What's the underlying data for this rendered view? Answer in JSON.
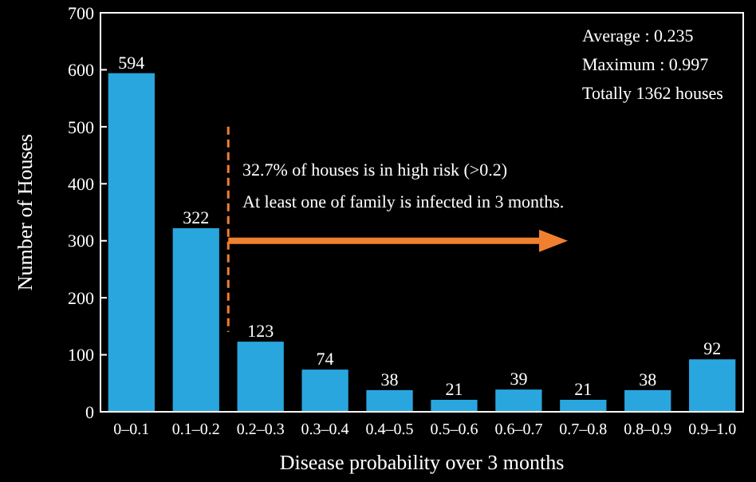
{
  "chart_data": {
    "type": "bar",
    "xlabel": "Disease probability over 3 months",
    "ylabel": "Number of Houses",
    "categories": [
      "0–0.1",
      "0.1–0.2",
      "0.2–0.3",
      "0.3–0.4",
      "0.4–0.5",
      "0.5–0.6",
      "0.6–0.7",
      "0.7–0.8",
      "0.8–0.9",
      "0.9–1.0"
    ],
    "values": [
      594,
      322,
      123,
      74,
      38,
      21,
      39,
      21,
      38,
      92
    ],
    "color": "#2aa6df",
    "data_labels": true,
    "ylim": [
      0,
      700
    ],
    "yticks": [
      0,
      100,
      200,
      300,
      400,
      500,
      600,
      700
    ],
    "grid": false,
    "annotations": [
      "Average   : 0.235",
      "Maximum : 0.997",
      "Totally 1362 houses",
      "32.7% of houses is in high risk (>0.2)",
      "At least one of family is infected in 3 months."
    ]
  }
}
